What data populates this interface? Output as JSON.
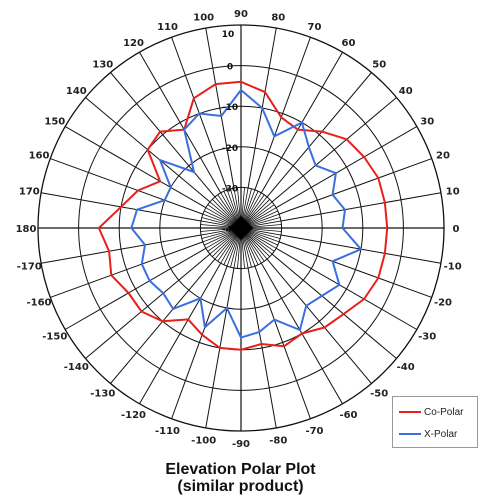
{
  "title_line1": "Elevation Polar Plot",
  "title_line2": "(similar product)",
  "chart_data": {
    "type": "polar-line",
    "angle_unit": "degrees",
    "angle_step": 10,
    "angle_labels": [
      "0",
      "10",
      "20",
      "30",
      "40",
      "50",
      "60",
      "70",
      "80",
      "90",
      "100",
      "110",
      "120",
      "130",
      "140",
      "150",
      "160",
      "170",
      "180",
      "-170",
      "-160",
      "-150",
      "-140",
      "-130",
      "-120",
      "-110",
      "-100",
      "-90",
      "-80",
      "-70",
      "-60",
      "-50",
      "-40",
      "-30",
      "-20",
      "-10"
    ],
    "radial_labels": [
      "0",
      "-10",
      "-20",
      "-30",
      "-40"
    ],
    "radial_range": [
      -40,
      10
    ],
    "radial_tick_label_10": "10",
    "series": [
      {
        "name": "Co-Polar",
        "color": "#e8201c",
        "points": [
          [
            0,
            -4
          ],
          [
            10,
            -4
          ],
          [
            20,
            -4
          ],
          [
            30,
            -5
          ],
          [
            40,
            -6
          ],
          [
            50,
            -9
          ],
          [
            60,
            -12
          ],
          [
            70,
            -11
          ],
          [
            80,
            -6
          ],
          [
            90,
            -4
          ],
          [
            100,
            -4
          ],
          [
            110,
            -6
          ],
          [
            120,
            -12
          ],
          [
            130,
            -9
          ],
          [
            140,
            -10
          ],
          [
            150,
            -17
          ],
          [
            160,
            -13
          ],
          [
            170,
            -10
          ],
          [
            180,
            -5
          ],
          [
            -170,
            -7
          ],
          [
            -160,
            -6
          ],
          [
            -150,
            -8
          ],
          [
            -140,
            -8
          ],
          [
            -130,
            -10
          ],
          [
            -120,
            -14
          ],
          [
            -110,
            -12
          ],
          [
            -100,
            -10
          ],
          [
            -90,
            -10
          ],
          [
            -80,
            -11
          ],
          [
            -70,
            -9
          ],
          [
            -60,
            -10
          ],
          [
            -50,
            -8
          ],
          [
            -40,
            -7
          ],
          [
            -30,
            -5
          ],
          [
            -20,
            -4
          ],
          [
            -10,
            -4
          ],
          [
            0,
            -4
          ]
        ]
      },
      {
        "name": "X-Polar",
        "color": "#3b6fe0",
        "points": [
          [
            0,
            -15
          ],
          [
            10,
            -14
          ],
          [
            20,
            -16
          ],
          [
            30,
            -13
          ],
          [
            40,
            -16
          ],
          [
            50,
            -14
          ],
          [
            60,
            -10
          ],
          [
            70,
            -16
          ],
          [
            80,
            -10
          ],
          [
            90,
            -6
          ],
          [
            100,
            -12
          ],
          [
            110,
            -10
          ],
          [
            120,
            -12
          ],
          [
            130,
            -22
          ],
          [
            140,
            -14
          ],
          [
            150,
            -20
          ],
          [
            160,
            -20
          ],
          [
            170,
            -14
          ],
          [
            180,
            -13
          ],
          [
            -170,
            -16
          ],
          [
            -160,
            -14
          ],
          [
            -150,
            -14
          ],
          [
            -140,
            -15
          ],
          [
            -130,
            -14
          ],
          [
            -120,
            -20
          ],
          [
            -110,
            -14
          ],
          [
            -100,
            -20
          ],
          [
            -90,
            -13
          ],
          [
            -80,
            -14
          ],
          [
            -70,
            -16
          ],
          [
            -60,
            -11
          ],
          [
            -50,
            -15
          ],
          [
            -40,
            -14
          ],
          [
            -30,
            -12
          ],
          [
            -20,
            -16
          ],
          [
            -10,
            -10
          ],
          [
            0,
            -15
          ]
        ]
      }
    ]
  },
  "legend": {
    "items": [
      {
        "label": "Co-Polar",
        "color": "#e8201c"
      },
      {
        "label": "X-Polar",
        "color": "#3b6fe0"
      }
    ]
  }
}
